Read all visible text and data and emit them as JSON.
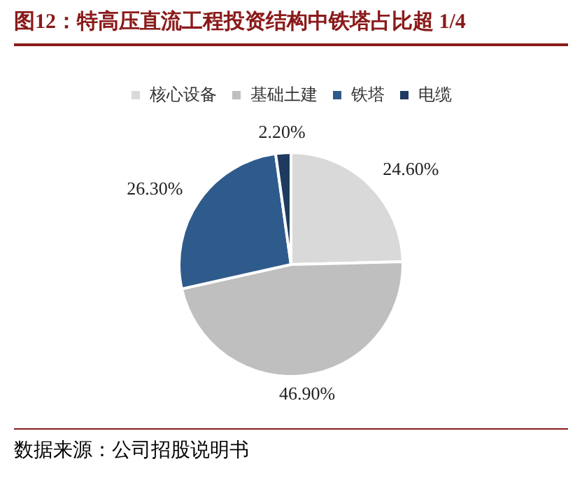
{
  "chart_data": {
    "type": "pie",
    "title": "图12：特高压直流工程投资结构中铁塔占比超 1/4",
    "categories": [
      "核心设备",
      "基础土建",
      "铁塔",
      "电缆"
    ],
    "values": [
      24.6,
      46.9,
      26.3,
      2.2
    ],
    "colors": [
      "#d9d9d9",
      "#bfbfbf",
      "#2f5b8c",
      "#1f3a60"
    ],
    "value_labels": [
      "24.60%",
      "46.90%",
      "26.30%",
      "2.20%"
    ],
    "legend": "top",
    "annotations": [
      "数据来源：公司招股说明书"
    ]
  }
}
